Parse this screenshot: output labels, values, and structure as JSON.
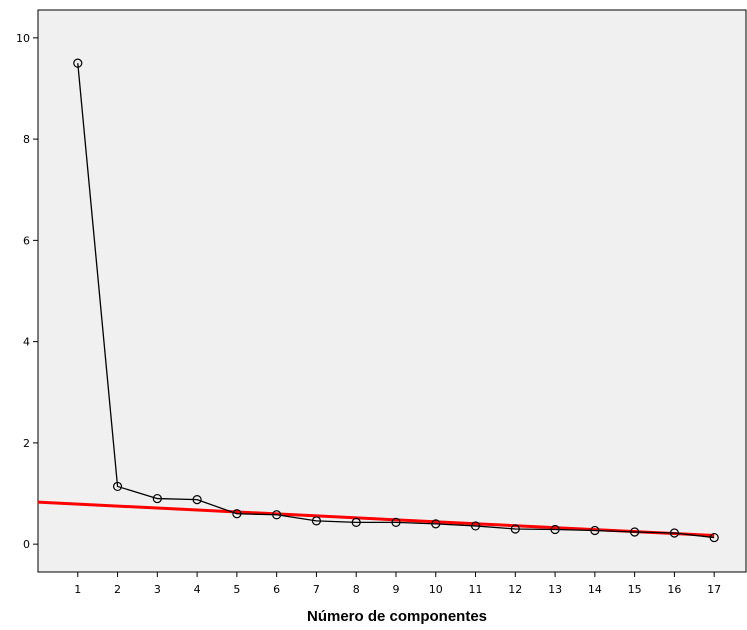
{
  "chart_data": {
    "type": "line",
    "title": "",
    "xlabel": "Número de componentes",
    "ylabel": "",
    "x": [
      1,
      2,
      3,
      4,
      5,
      6,
      7,
      8,
      9,
      10,
      11,
      12,
      13,
      14,
      15,
      16,
      17
    ],
    "series": [
      {
        "values": [
          9.5,
          1.14,
          0.9,
          0.88,
          0.6,
          0.58,
          0.46,
          0.43,
          0.43,
          0.4,
          0.36,
          0.3,
          0.29,
          0.27,
          0.24,
          0.22,
          0.13
        ],
        "color": "#000000",
        "marker": "circle"
      }
    ],
    "reference_line": {
      "x": [
        0,
        17
      ],
      "values": [
        0.83,
        0.17
      ],
      "color": "#ff0000"
    },
    "ylim": [
      -0.55,
      10.55
    ],
    "xlim": [
      0,
      17.8
    ],
    "yticks": [
      "0",
      "2",
      "4",
      "6",
      "8",
      "10"
    ],
    "xticks": [
      "1",
      "2",
      "3",
      "4",
      "5",
      "6",
      "7",
      "8",
      "9",
      "10",
      "11",
      "12",
      "13",
      "14",
      "15",
      "16",
      "17"
    ],
    "plot_background": "#f0f0f0",
    "grid": false
  }
}
